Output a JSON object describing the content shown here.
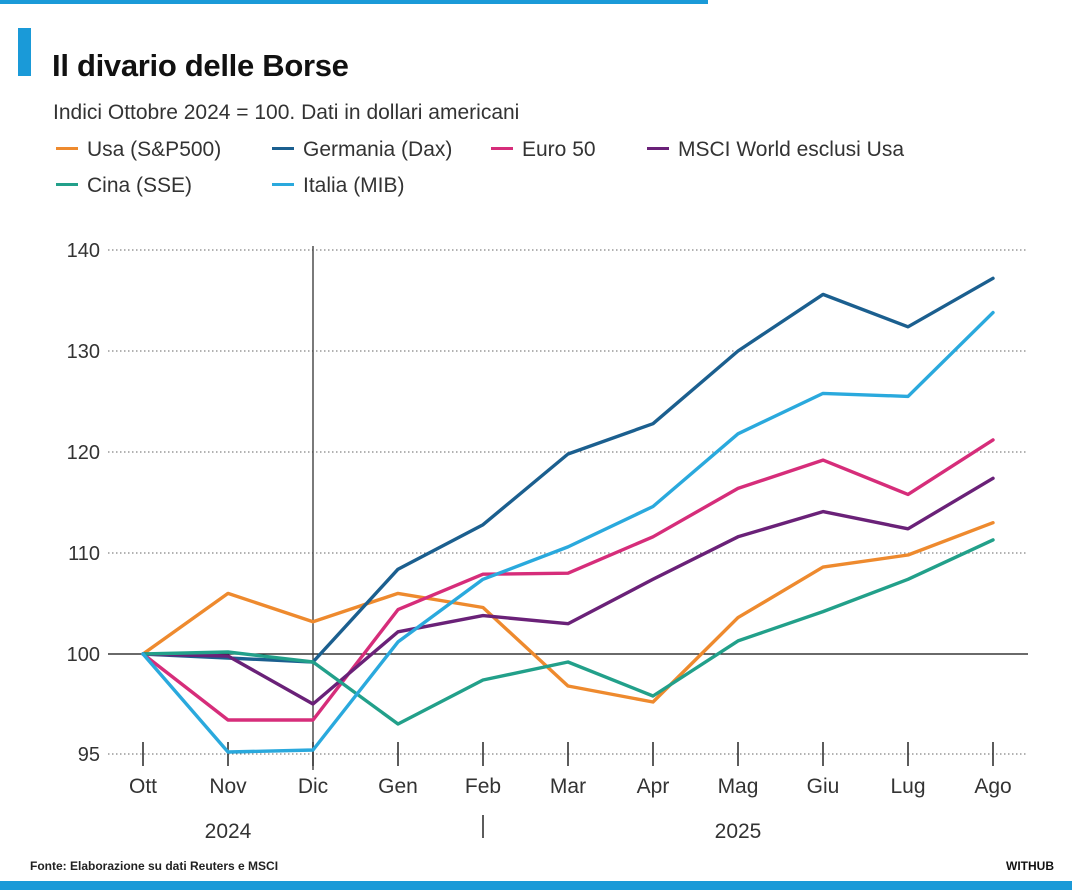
{
  "header": {
    "title": "Il divario delle Borse",
    "subtitle": "Indici Ottobre 2024 = 100. Dati in dollari americani"
  },
  "colors": {
    "accent": "#1a9ad8"
  },
  "chart_data": {
    "type": "line",
    "title": "Il divario delle Borse",
    "subtitle": "Indici Ottobre 2024 = 100. Dati in dollari americani",
    "xlabel": "",
    "ylabel": "",
    "ylim": [
      95,
      140
    ],
    "yticks": [
      95,
      100,
      110,
      120,
      130,
      140
    ],
    "grid": true,
    "legend_position": "top",
    "categories": [
      "Ott",
      "Nov",
      "Dic",
      "Gen",
      "Feb",
      "Mar",
      "Apr",
      "Mag",
      "Giu",
      "Lug",
      "Ago"
    ],
    "year_labels": [
      {
        "label": "2024",
        "center_month": "Nov"
      },
      {
        "label": "2025",
        "center_month": "Mag"
      }
    ],
    "series": [
      {
        "name": "Usa (S&P500)",
        "color": "#ee8a2e",
        "values": [
          100,
          106,
          103.2,
          106,
          104.6,
          98.4,
          97.6,
          103.6,
          108.6,
          109.8,
          113
        ]
      },
      {
        "name": "Germania (Dax)",
        "color": "#1b5f8f",
        "values": [
          100,
          99.8,
          99.6,
          108.4,
          112.8,
          119.8,
          122.8,
          130,
          135.6,
          132.4,
          137.2
        ]
      },
      {
        "name": "Euro 50",
        "color": "#d62d7a",
        "values": [
          100,
          96.7,
          96.7,
          104.4,
          107.9,
          108,
          111.6,
          116.4,
          119.2,
          115.8,
          121.2
        ]
      },
      {
        "name": "MSCI World esclusi Usa",
        "color": "#6a2178",
        "values": [
          100,
          99.9,
          97.5,
          102.2,
          103.8,
          103,
          107.4,
          111.6,
          114.1,
          112.4,
          117.4
        ]
      },
      {
        "name": "Cina (SSE)",
        "color": "#22a08a",
        "values": [
          100,
          100.2,
          99.6,
          96.5,
          98.7,
          99.6,
          97.9,
          101.3,
          104.2,
          107.4,
          111.3
        ]
      },
      {
        "name": "Italia (MIB)",
        "color": "#2aa9dd",
        "values": [
          100,
          95.1,
          95.2,
          101.2,
          107.4,
          110.6,
          114.6,
          121.8,
          125.8,
          125.5,
          133.8
        ]
      }
    ]
  },
  "footer": {
    "source": "Fonte: Elaborazione su dati Reuters e MSCI",
    "brand": "WITHUB"
  }
}
